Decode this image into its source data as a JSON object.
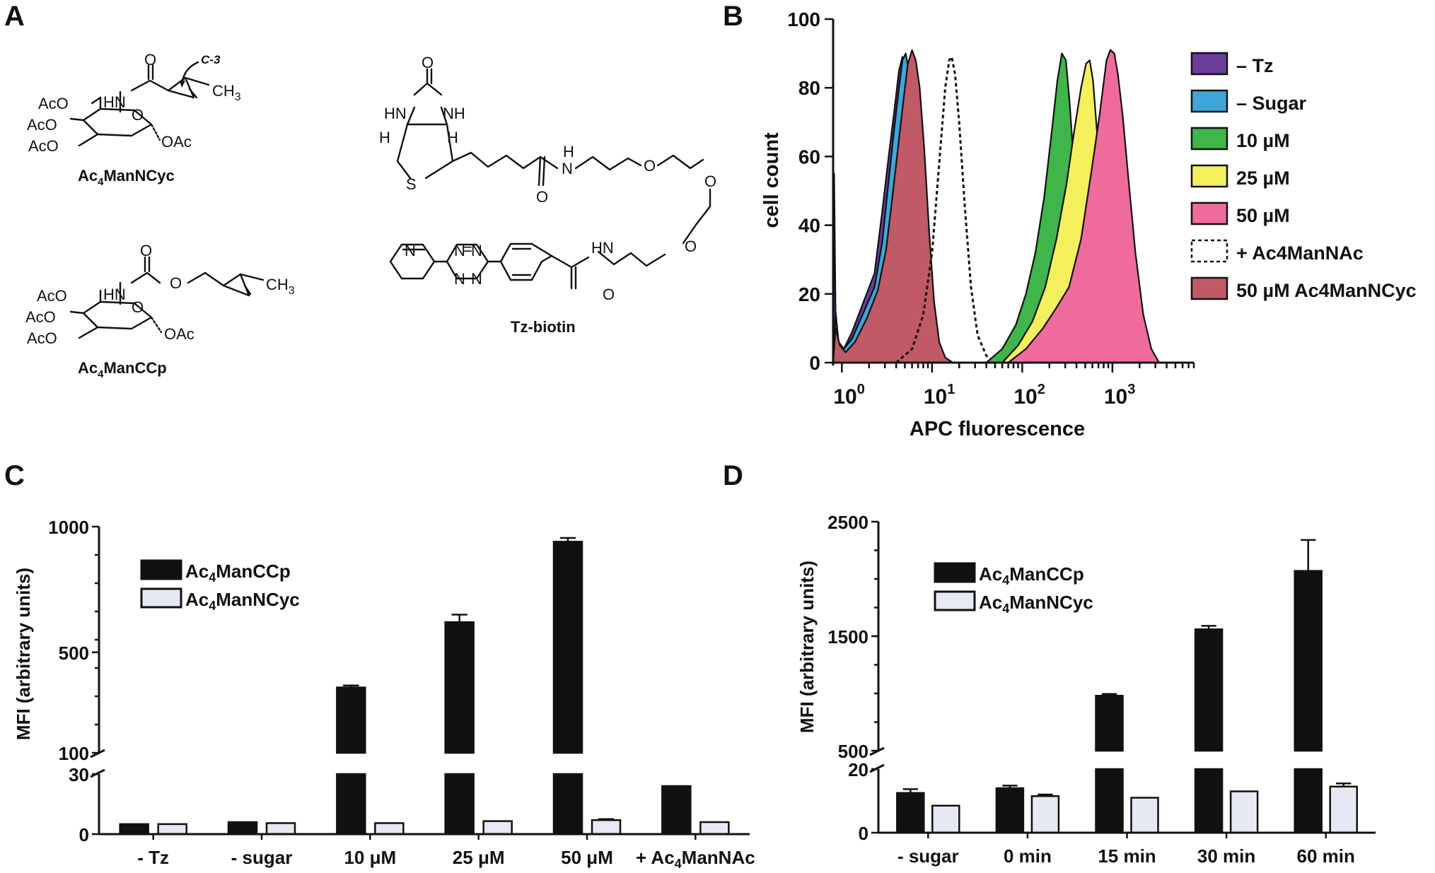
{
  "panels": {
    "a": {
      "letter": "A",
      "cyc": {
        "name": "Ac",
        "sub": "4",
        "rest": "ManNCyc",
        "c3": "C-3",
        "ch3": "CH",
        "ch3sub": "3",
        "aco1": "AcO",
        "aco2": "AcO",
        "aco3": "AcO",
        "oac": "OAc",
        "hn": "HN",
        "o_ring": "O",
        "o_carb": "O"
      },
      "ccp": {
        "name": "Ac",
        "sub": "4",
        "rest": "ManCCp",
        "ch3": "CH",
        "ch3sub": "3",
        "aco1": "AcO",
        "aco2": "AcO",
        "aco3": "AcO",
        "oac": "OAc",
        "hn": "HN",
        "o_ring": "O",
        "o_carb": "O",
        "o_link": "O"
      },
      "tz": {
        "name": "Tz-biotin",
        "hn1": "HN",
        "nh1": "NH",
        "h1": "H",
        "h2": "H",
        "s": "S",
        "o_urea": "O",
        "o_amide1": "O",
        "h_amide": "H",
        "n_amide": "N",
        "o_e1": "O",
        "o_e2": "O",
        "o_e3": "O",
        "hn2": "HN",
        "o_amide2": "O",
        "n_py": "N",
        "n1": "N",
        "n2": "N",
        "n3": "N",
        "n4": "N",
        "eq": "="
      }
    },
    "b": {
      "letter": "B"
    },
    "c": {
      "letter": "C"
    },
    "d": {
      "letter": "D"
    }
  },
  "colors": {
    "tz": "#6a3d9a",
    "sugar": "#3ea6d8",
    "c10": "#3fb54a",
    "c25": "#f4ef5d",
    "c50": "#ef6b9c",
    "cyc": "#c05a66",
    "black": "#111111",
    "light": "#e6e8f4"
  },
  "chart_data": [
    {
      "type": "area",
      "panel": "B",
      "xlabel": "APC fluorescence",
      "ylabel": "cell count",
      "xscale": "log",
      "xlim": [
        0.8,
        8000
      ],
      "ylim": [
        0,
        100
      ],
      "yticks": [
        "0",
        "20",
        "40",
        "60",
        "80",
        "100"
      ],
      "xticks": [
        {
          "base": "10",
          "exp": "0",
          "value": 1
        },
        {
          "base": "10",
          "exp": "1",
          "value": 10
        },
        {
          "base": "10",
          "exp": "2",
          "value": 100
        },
        {
          "base": "10",
          "exp": "3",
          "value": 1000
        }
      ],
      "legend": [
        {
          "label": "– Tz",
          "color": "#6a3d9a",
          "style": "fill"
        },
        {
          "label": "– Sugar",
          "color": "#3ea6d8",
          "style": "fill"
        },
        {
          "label": "10 µM",
          "color": "#3fb54a",
          "style": "fill"
        },
        {
          "label": "25 µM",
          "color": "#f4ef5d",
          "style": "fill"
        },
        {
          "label": "50 µM",
          "color": "#ef6b9c",
          "style": "fill"
        },
        {
          "label": "+ Ac4ManNAc",
          "color": "#ffffff",
          "style": "dashed"
        },
        {
          "label": "50 µM Ac4ManNCyc",
          "color": "#c05a66",
          "style": "fill"
        }
      ],
      "series": [
        {
          "name": "– Tz",
          "color": "#6a3d9a",
          "style": "fill",
          "points": [
            [
              0.8,
              0
            ],
            [
              0.82,
              55
            ],
            [
              0.85,
              15
            ],
            [
              0.92,
              6
            ],
            [
              1.05,
              4
            ],
            [
              1.3,
              9
            ],
            [
              1.7,
              17
            ],
            [
              2.3,
              26
            ],
            [
              2.8,
              44
            ],
            [
              3.3,
              60
            ],
            [
              3.8,
              73
            ],
            [
              4.3,
              85
            ],
            [
              4.7,
              89
            ],
            [
              5.2,
              86
            ],
            [
              5.8,
              78
            ],
            [
              6.8,
              60
            ],
            [
              8,
              32
            ],
            [
              9.5,
              10
            ],
            [
              11.5,
              2
            ],
            [
              14,
              0
            ]
          ]
        },
        {
          "name": "– Sugar",
          "color": "#3ea6d8",
          "style": "fill",
          "points": [
            [
              0.8,
              0
            ],
            [
              0.85,
              14
            ],
            [
              0.92,
              6
            ],
            [
              1.05,
              4
            ],
            [
              1.3,
              7
            ],
            [
              1.7,
              14
            ],
            [
              2.3,
              22
            ],
            [
              2.8,
              35
            ],
            [
              3.3,
              53
            ],
            [
              3.8,
              68
            ],
            [
              4.3,
              80
            ],
            [
              4.7,
              88
            ],
            [
              5.1,
              90
            ],
            [
              5.6,
              84
            ],
            [
              6.3,
              72
            ],
            [
              7.3,
              52
            ],
            [
              8.5,
              27
            ],
            [
              10,
              8
            ],
            [
              12,
              2
            ],
            [
              15,
              0
            ]
          ]
        },
        {
          "name": "50 µM Ac4ManNCyc",
          "color": "#c05a66",
          "style": "fill",
          "points": [
            [
              0.8,
              0
            ],
            [
              0.85,
              10
            ],
            [
              0.95,
              5
            ],
            [
              1.1,
              3
            ],
            [
              1.4,
              6
            ],
            [
              1.9,
              13
            ],
            [
              2.5,
              21
            ],
            [
              3.1,
              33
            ],
            [
              3.7,
              50
            ],
            [
              4.3,
              65
            ],
            [
              4.9,
              78
            ],
            [
              5.4,
              87
            ],
            [
              6,
              91
            ],
            [
              6.6,
              88
            ],
            [
              7.3,
              80
            ],
            [
              8.2,
              62
            ],
            [
              9.3,
              38
            ],
            [
              10.5,
              18
            ],
            [
              12,
              6
            ],
            [
              14,
              1.5
            ],
            [
              17,
              0
            ]
          ]
        },
        {
          "name": "+ Ac4ManNAc",
          "color": "#111111",
          "style": "dashed",
          "points": [
            [
              4,
              0
            ],
            [
              6,
              4
            ],
            [
              8,
              14
            ],
            [
              10,
              32
            ],
            [
              12,
              58
            ],
            [
              14,
              80
            ],
            [
              15.5,
              88
            ],
            [
              16.5,
              89
            ],
            [
              18,
              84
            ],
            [
              20,
              70
            ],
            [
              23,
              46
            ],
            [
              27,
              22
            ],
            [
              32,
              8
            ],
            [
              40,
              2
            ],
            [
              50,
              0
            ]
          ]
        },
        {
          "name": "10 µM",
          "color": "#3fb54a",
          "style": "fill",
          "points": [
            [
              40,
              0
            ],
            [
              60,
              4
            ],
            [
              85,
              11
            ],
            [
              110,
              20
            ],
            [
              140,
              32
            ],
            [
              175,
              48
            ],
            [
              210,
              66
            ],
            [
              245,
              82
            ],
            [
              275,
              90
            ],
            [
              305,
              88
            ],
            [
              335,
              76
            ],
            [
              380,
              55
            ],
            [
              440,
              32
            ],
            [
              520,
              14
            ],
            [
              620,
              4
            ],
            [
              750,
              0
            ]
          ]
        },
        {
          "name": "25 µM",
          "color": "#f4ef5d",
          "style": "fill",
          "points": [
            [
              60,
              0
            ],
            [
              90,
              5
            ],
            [
              130,
              12
            ],
            [
              180,
              22
            ],
            [
              240,
              36
            ],
            [
              310,
              52
            ],
            [
              380,
              68
            ],
            [
              450,
              80
            ],
            [
              510,
              87
            ],
            [
              560,
              88
            ],
            [
              610,
              82
            ],
            [
              680,
              66
            ],
            [
              780,
              42
            ],
            [
              900,
              20
            ],
            [
              1050,
              6
            ],
            [
              1250,
              0
            ]
          ]
        },
        {
          "name": "50 µM",
          "color": "#ef6b9c",
          "style": "fill",
          "points": [
            [
              70,
              0
            ],
            [
              110,
              4
            ],
            [
              170,
              10
            ],
            [
              240,
              16
            ],
            [
              330,
              22
            ],
            [
              450,
              36
            ],
            [
              580,
              55
            ],
            [
              720,
              72
            ],
            [
              860,
              88
            ],
            [
              950,
              91
            ],
            [
              1050,
              90
            ],
            [
              1150,
              84
            ],
            [
              1300,
              72
            ],
            [
              1500,
              54
            ],
            [
              1800,
              32
            ],
            [
              2200,
              14
            ],
            [
              2700,
              4
            ],
            [
              3300,
              0
            ]
          ]
        }
      ]
    },
    {
      "type": "bar",
      "panel": "C",
      "ylabel": "MFI  (arbitrary units)",
      "categories": [
        {
          "text": "- Tz"
        },
        {
          "text": "- sugar"
        },
        {
          "text": "10 μM"
        },
        {
          "text": "25 μM"
        },
        {
          "text": "50 μM"
        },
        {
          "text": "+ Ac",
          "sub": "4",
          "after": "ManNAc"
        }
      ],
      "axis_break": {
        "lower": [
          0,
          30
        ],
        "upper": [
          100,
          1000
        ]
      },
      "yticks": [
        "0",
        "30",
        "100",
        "500",
        "1000"
      ],
      "legend": [
        {
          "pre": "Ac",
          "sub": "4",
          "post": "ManCCp",
          "color": "#111111"
        },
        {
          "pre": "Ac",
          "sub": "4",
          "post": "ManNCyc",
          "color": "#e6e8f4"
        }
      ],
      "series": [
        {
          "name": "Ac4ManCCp",
          "color": "#111111",
          "values": [
            5,
            6,
            360,
            620,
            940,
            24
          ],
          "errors": [
            0,
            0,
            8,
            30,
            15,
            0
          ]
        },
        {
          "name": "Ac4ManNCyc",
          "color": "#e6e8f4",
          "values": [
            5,
            5.5,
            5.5,
            6.5,
            7,
            6
          ],
          "errors": [
            0,
            0,
            0,
            0,
            0.5,
            0
          ]
        }
      ]
    },
    {
      "type": "bar",
      "panel": "D",
      "ylabel": "MFI  (arbitrary units)",
      "categories": [
        {
          "text": "- sugar"
        },
        {
          "text": "0 min"
        },
        {
          "text": "15 min"
        },
        {
          "text": "30 min"
        },
        {
          "text": "60 min"
        }
      ],
      "axis_break": {
        "lower": [
          0,
          20
        ],
        "upper": [
          500,
          2500
        ]
      },
      "yticks": [
        "0",
        "20",
        "500",
        "1500",
        "2500"
      ],
      "legend": [
        {
          "pre": "Ac",
          "sub": "4",
          "post": "ManCCp",
          "color": "#111111"
        },
        {
          "pre": "Ac",
          "sub": "4",
          "post": "ManNCyc",
          "color": "#e6e8f4"
        }
      ],
      "series": [
        {
          "name": "Ac4ManCCp",
          "color": "#111111",
          "values": [
            12.5,
            14,
            980,
            1560,
            2070
          ],
          "errors": [
            1.2,
            0.8,
            15,
            30,
            270
          ]
        },
        {
          "name": "Ac4ManNCyc",
          "color": "#e6e8f4",
          "values": [
            8.5,
            11.5,
            11,
            13,
            14.5
          ],
          "errors": [
            0,
            0.5,
            0,
            0,
            1
          ]
        }
      ]
    }
  ]
}
